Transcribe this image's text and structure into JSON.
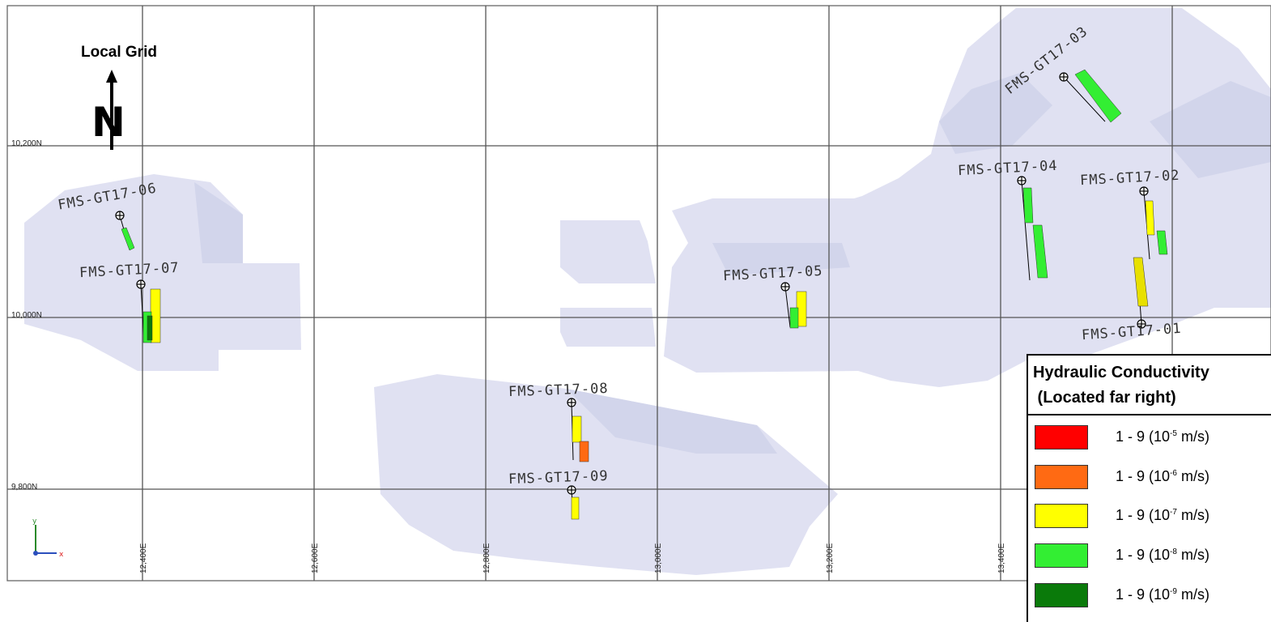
{
  "map": {
    "north_label": "Local Grid",
    "north_letter": "N",
    "northings": [
      "10,200N",
      "10,000N",
      "9,800N"
    ],
    "eastings": [
      "12,400E",
      "12,600E",
      "12,800E",
      "13,000E",
      "13,200E",
      "13,400E"
    ],
    "axis_x": "x",
    "axis_y": "y"
  },
  "wells": [
    {
      "name": "FMS-GT17-01"
    },
    {
      "name": "FMS-GT17-02"
    },
    {
      "name": "FMS-GT17-03"
    },
    {
      "name": "FMS-GT17-04"
    },
    {
      "name": "FMS-GT17-05"
    },
    {
      "name": "FMS-GT17-06"
    },
    {
      "name": "FMS-GT17-07"
    },
    {
      "name": "FMS-GT17-08"
    },
    {
      "name": "FMS-GT17-09"
    }
  ],
  "legend": {
    "title": "Hydraulic Conductivity\n (Located far right)",
    "items": [
      {
        "range": "1 - 9 (10",
        "exp": "-5",
        "unit": " m/s)",
        "color": "#ff0000"
      },
      {
        "range": "1 - 9 (10",
        "exp": "-6",
        "unit": " m/s)",
        "color": "#ff6a13"
      },
      {
        "range": "1 - 9 (10",
        "exp": "-7",
        "unit": " m/s)",
        "color": "#ffff00"
      },
      {
        "range": "1 - 9 (10",
        "exp": "-8",
        "unit": " m/s)",
        "color": "#33ee33"
      },
      {
        "range": "1 - 9 (10",
        "exp": "-9",
        "unit": " m/s)",
        "color": "#0a7a0a"
      }
    ]
  },
  "colors": {
    "block_fill": "#dadcf0",
    "grid_line": "#555555",
    "k_e5": "#ff0000",
    "k_e6": "#ff6a13",
    "k_e7": "#ffff00",
    "k_e8": "#33ee33",
    "k_e9": "#0a7a0a"
  }
}
